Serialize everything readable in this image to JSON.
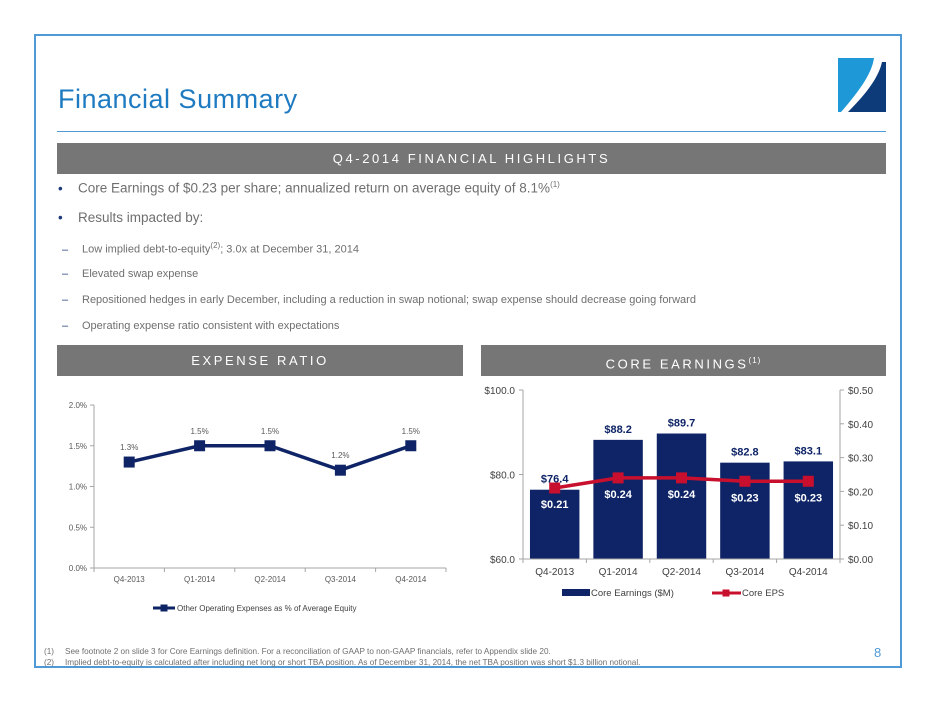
{
  "slide": {
    "title": "Financial Summary",
    "page_number": "8",
    "brand_colors": {
      "frame": "#4f9ad6",
      "title": "#1f7bc1",
      "navy": "#0f2466",
      "red": "#c8102e",
      "section_bar": "#767676"
    }
  },
  "highlights": {
    "header": "Q4-2014 FINANCIAL HIGHLIGHTS",
    "bullets": [
      {
        "text": "Core Earnings of $0.23 per share; annualized return on average equity of 8.1%",
        "sup": "(1)"
      },
      {
        "text": "Results impacted by:",
        "sup": ""
      }
    ],
    "sub_bullets": [
      {
        "pre": "Low implied debt-to-equity",
        "sup": "(2)",
        "post": "; 3.0x at December 31, 2014"
      },
      {
        "pre": "Elevated swap expense",
        "sup": "",
        "post": ""
      },
      {
        "pre": "Repositioned hedges in early December, including a reduction in swap notional;  swap expense should decrease going forward",
        "sup": "",
        "post": ""
      },
      {
        "pre": "Operating expense ratio consistent with expectations",
        "sup": "",
        "post": ""
      }
    ]
  },
  "sections": {
    "expense_ratio": "EXPENSE RATIO",
    "core_earnings": "CORE EARNINGS",
    "core_earnings_sup": "(1)"
  },
  "footnotes": [
    {
      "num": "(1)",
      "text": "See footnote 2 on slide 3 for Core Earnings definition.  For a reconciliation of GAAP to non-GAAP financials, refer to Appendix slide 20."
    },
    {
      "num": "(2)",
      "text": "Implied debt-to-equity is calculated after including net long or short TBA position.  As of December 31, 2014, the net TBA position was short $1.3 billion notional."
    }
  ],
  "chart_data": [
    {
      "type": "line",
      "title": "Expense Ratio",
      "categories": [
        "Q4-2013",
        "Q1-2014",
        "Q2-2014",
        "Q3-2014",
        "Q4-2014"
      ],
      "series": [
        {
          "name": "Other Operating Expenses as % of Average Equity",
          "values": [
            1.3,
            1.5,
            1.5,
            1.2,
            1.5
          ],
          "labels": [
            "1.3%",
            "1.5%",
            "1.5%",
            "1.2%",
            "1.5%"
          ],
          "color": "#0f2466"
        }
      ],
      "ylim": [
        0,
        2.0
      ],
      "yticks": [
        0.0,
        0.5,
        1.0,
        1.5,
        2.0
      ],
      "ytick_labels": [
        "0.0%",
        "0.5%",
        "1.0%",
        "1.5%",
        "2.0%"
      ],
      "xlabel": "",
      "ylabel": "",
      "grid": false,
      "legend": "bottom"
    },
    {
      "type": "bar",
      "title": "Core Earnings",
      "categories": [
        "Q4-2013",
        "Q1-2014",
        "Q2-2014",
        "Q3-2014",
        "Q4-2014"
      ],
      "series": [
        {
          "name": "Core Earnings ($M)",
          "type": "bar",
          "axis": "left",
          "values": [
            76.4,
            88.2,
            89.7,
            82.8,
            83.1
          ],
          "labels": [
            "$76.4",
            "$88.2",
            "$89.7",
            "$82.8",
            "$83.1"
          ],
          "color": "#0f2466"
        },
        {
          "name": "Core EPS",
          "type": "line",
          "axis": "right",
          "values": [
            0.21,
            0.24,
            0.24,
            0.23,
            0.23
          ],
          "labels": [
            "$0.21",
            "$0.24",
            "$0.24",
            "$0.23",
            "$0.23"
          ],
          "color": "#c8102e"
        }
      ],
      "ylim": [
        60.0,
        100.0
      ],
      "yticks": [
        60.0,
        80.0,
        100.0
      ],
      "ytick_labels": [
        "$60.0",
        "$80.0",
        "$100.0"
      ],
      "y2lim": [
        0.0,
        0.5
      ],
      "y2ticks": [
        0.0,
        0.1,
        0.2,
        0.3,
        0.4,
        0.5
      ],
      "y2tick_labels": [
        "$0.00",
        "$0.10",
        "$0.20",
        "$0.30",
        "$0.40",
        "$0.50"
      ],
      "xlabel": "",
      "ylabel": "",
      "grid": false,
      "legend": "bottom"
    }
  ]
}
